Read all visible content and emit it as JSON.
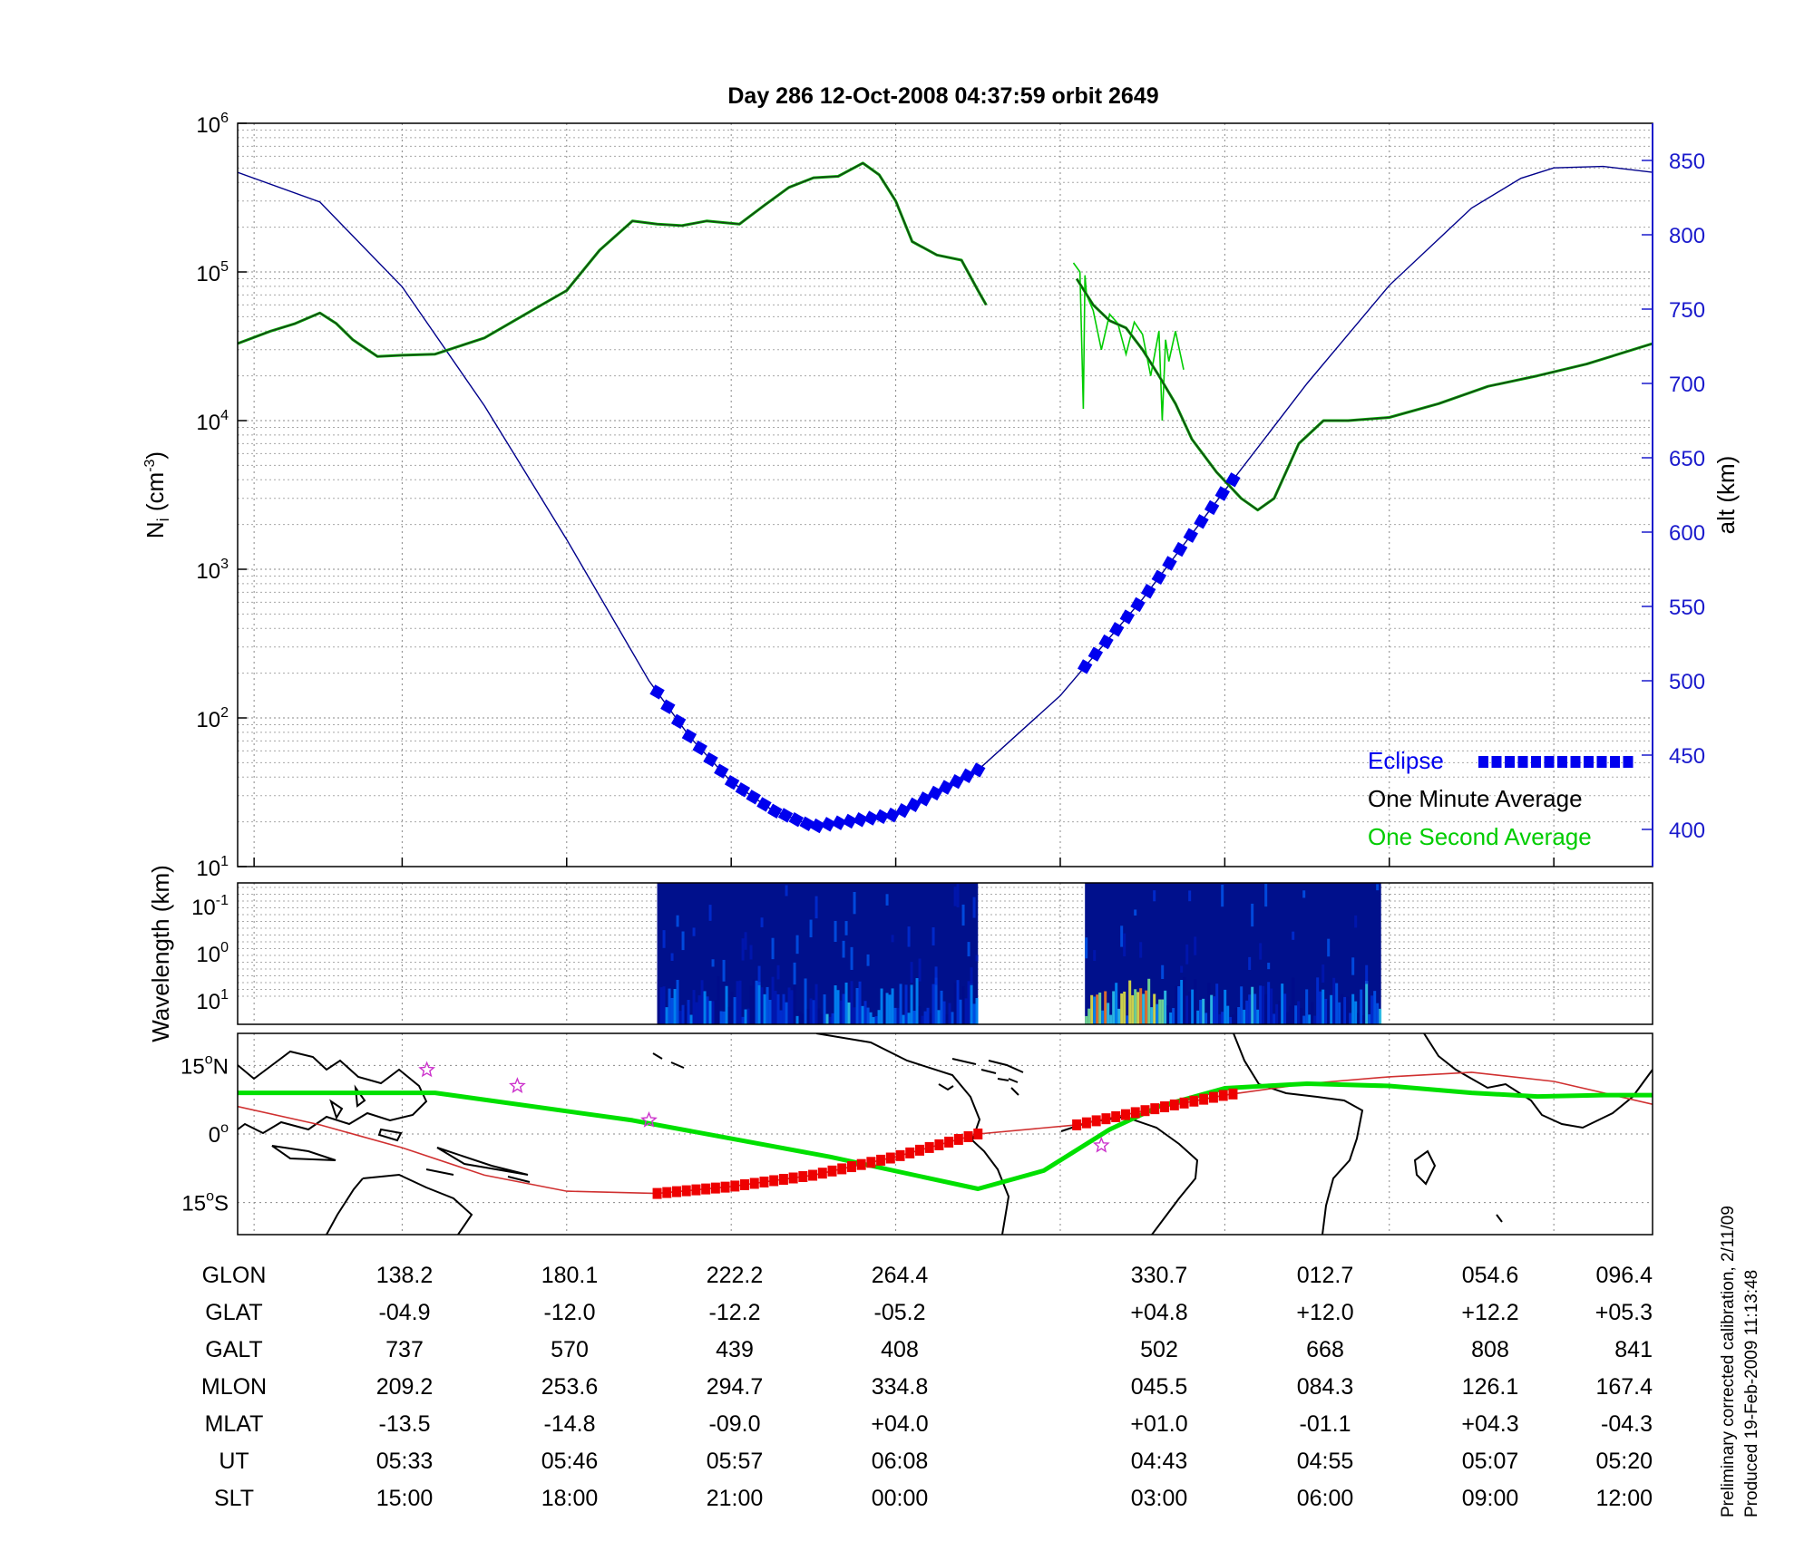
{
  "title": "Day 286  12-Oct-2008 04:37:59   orbit 2649",
  "colors": {
    "altitude": "#00008b",
    "one_minute": "#000000",
    "one_second": "#00cc00",
    "eclipse": "#0000ee",
    "ground_track": "#00e000",
    "magnetic_track": "#d03030",
    "eclipse_map": "#ee0000",
    "star": "#cc33cc",
    "axis_right": "#1a1acc"
  },
  "chart_data": [
    {
      "type": "line",
      "panel": "density",
      "ylabel": "N",
      "ylabel_sub": "i",
      "ylabel_unit": " (cm",
      "ylabel_unit_sup": "-3",
      "ylabel_close": ")",
      "yscale": "log",
      "ylim": [
        10,
        1000000
      ],
      "y_ticks": [
        {
          "base": "10",
          "exp": "1",
          "value": 10
        },
        {
          "base": "10",
          "exp": "2",
          "value": 100
        },
        {
          "base": "10",
          "exp": "3",
          "value": 1000
        },
        {
          "base": "10",
          "exp": "4",
          "value": 10000
        },
        {
          "base": "10",
          "exp": "5",
          "value": 100000
        },
        {
          "base": "10",
          "exp": "6",
          "value": 1000000
        }
      ],
      "xlim": [
        0,
        8.6
      ],
      "y2label": "alt (km)",
      "y2lim": [
        375,
        875
      ],
      "y2_ticks": [
        "400",
        "450",
        "500",
        "550",
        "600",
        "650",
        "700",
        "750",
        "800",
        "850"
      ],
      "legend_position": "bottom-right",
      "legend": {
        "eclipse": "Eclipse",
        "one_minute": "One Minute Average",
        "one_second": "One Second Average"
      },
      "grid": true,
      "series": [
        {
          "name": "One Minute Average",
          "axis": "left",
          "segments": [
            {
              "x": [
                0,
                0.2,
                0.35,
                0.5,
                0.6,
                0.7,
                0.85,
                1.0,
                1.2,
                1.5,
                1.8,
                2.0,
                2.2,
                2.4,
                2.55,
                2.7,
                2.85,
                3.05,
                3.2,
                3.35,
                3.5,
                3.65,
                3.8,
                3.9,
                4.0,
                4.1,
                4.25,
                4.4,
                4.5,
                4.55
              ],
              "y": [
                33000,
                40000,
                45000,
                53000,
                45000,
                35000,
                27000,
                27500,
                28000,
                36000,
                56000,
                75000,
                140000,
                220000,
                210000,
                205000,
                220000,
                210000,
                280000,
                370000,
                430000,
                440000,
                540000,
                450000,
                300000,
                160000,
                130000,
                120000,
                75000,
                60000
              ]
            },
            {
              "x": [
                5.1,
                5.2,
                5.3,
                5.4,
                5.5,
                5.6,
                5.7,
                5.8,
                5.95,
                6.1,
                6.2,
                6.3,
                6.45,
                6.6,
                6.75,
                7.0,
                7.3,
                7.6,
                7.9,
                8.2,
                8.6
              ],
              "y": [
                90000,
                60000,
                47000,
                42000,
                30000,
                20000,
                13000,
                7500,
                4500,
                3000,
                2500,
                3000,
                7000,
                10000,
                10000,
                10500,
                13000,
                17000,
                20000,
                24000,
                33000
              ]
            }
          ]
        },
        {
          "name": "One Second Average",
          "axis": "left",
          "segments": [
            {
              "x": [
                5.08,
                5.12,
                5.14,
                5.15,
                5.16,
                5.2,
                5.25,
                5.3,
                5.35,
                5.4,
                5.45,
                5.5,
                5.55,
                5.6,
                5.62,
                5.64,
                5.66,
                5.7,
                5.75
              ],
              "y": [
                115000,
                100000,
                12000,
                95000,
                70000,
                55000,
                30000,
                52000,
                45000,
                28000,
                46000,
                38000,
                20000,
                40000,
                10000,
                35000,
                25000,
                40000,
                22000
              ]
            }
          ]
        },
        {
          "name": "altitude",
          "axis": "right",
          "segments": [
            {
              "x": [
                0,
                0.5,
                1.0,
                1.5,
                2.0,
                2.5,
                2.75,
                3.0,
                3.25,
                3.5,
                4.0,
                4.5,
                5.0,
                5.5,
                6.0,
                6.5,
                7.0,
                7.5,
                7.8,
                8.0,
                8.3,
                8.6
              ],
              "y": [
                842,
                822,
                765,
                685,
                595,
                500,
                462,
                432,
                413,
                402,
                410,
                440,
                490,
                555,
                628,
                700,
                766,
                818,
                838,
                845,
                846,
                842
              ]
            }
          ]
        },
        {
          "name": "Eclipse",
          "axis": "right",
          "segments": [
            {
              "x_start": 2.55,
              "x_end": 4.5
            },
            {
              "x_start": 5.15,
              "x_end": 6.05
            }
          ]
        }
      ]
    },
    {
      "type": "heatmap",
      "panel": "spectrogram",
      "ylabel": "Wavelength (km)",
      "y_ticks": [
        {
          "base": "10",
          "exp": "-1"
        },
        {
          "base": "10",
          "exp": "0"
        },
        {
          "base": "10",
          "exp": "1"
        }
      ],
      "segments": [
        {
          "x_start": 2.55,
          "x_end": 4.5
        },
        {
          "x_start": 5.15,
          "x_end": 6.95
        }
      ]
    },
    {
      "type": "line",
      "panel": "map",
      "ylim": [
        -22,
        22
      ],
      "y_ticks": [
        {
          "value": 15,
          "text": "15",
          "unit": "N"
        },
        {
          "value": 0,
          "text": "0",
          "unit": ""
        },
        {
          "value": -15,
          "text": "15",
          "unit": "S"
        }
      ],
      "series": [
        {
          "name": "ground_track",
          "x": [
            0,
            1.2,
            2.4,
            3.6,
            4.5,
            4.9,
            5.3,
            5.6,
            6.0,
            6.5,
            7.0,
            7.5,
            7.9,
            8.3,
            8.6
          ],
          "y": [
            9,
            9,
            3,
            -5,
            -12,
            -8,
            1,
            6,
            10,
            11,
            10.5,
            9,
            8.2,
            8.5,
            8.5
          ]
        },
        {
          "name": "magnetic_track",
          "x": [
            0,
            0.5,
            1.0,
            1.5,
            2.0,
            2.55,
            3.0,
            3.5,
            4.0,
            4.5,
            5.1,
            5.5,
            6.0,
            6.5,
            7.0,
            7.5,
            8.0,
            8.6
          ],
          "y": [
            6,
            2,
            -3,
            -9,
            -12.5,
            -13,
            -11.5,
            -9,
            -5,
            0,
            2,
            5,
            8.5,
            11,
            12.5,
            13.5,
            11.5,
            6.5
          ]
        },
        {
          "name": "eclipse_map",
          "segments": [
            {
              "x_start": 2.55,
              "x_end": 4.5
            },
            {
              "x_start": 5.1,
              "x_end": 6.05
            }
          ]
        }
      ],
      "stars": [
        {
          "x": 1.15,
          "y": 14
        },
        {
          "x": 1.7,
          "y": 10.5
        },
        {
          "x": 2.5,
          "y": 3
        },
        {
          "x": 5.25,
          "y": -2.5
        }
      ]
    }
  ],
  "table": {
    "row_labels": [
      "GLON",
      "GLAT",
      "GALT",
      "MLON",
      "MLAT",
      "UT",
      "SLT"
    ],
    "columns": [
      [
        "138.2",
        "-04.9",
        "737",
        "209.2",
        "-13.5",
        "05:33",
        "15:00"
      ],
      [
        "180.1",
        "-12.0",
        "570",
        "253.6",
        "-14.8",
        "05:46",
        "18:00"
      ],
      [
        "222.2",
        "-12.2",
        "439",
        "294.7",
        "-09.0",
        "05:57",
        "21:00"
      ],
      [
        "264.4",
        "-05.2",
        "408",
        "334.8",
        "+04.0",
        "06:08",
        "00:00"
      ],
      [
        "330.7",
        "+04.8",
        "502",
        "045.5",
        "+01.0",
        "04:43",
        "03:00"
      ],
      [
        "012.7",
        "+12.0",
        "668",
        "084.3",
        "-01.1",
        "04:55",
        "06:00"
      ],
      [
        "054.6",
        "+12.2",
        "808",
        "126.1",
        "+04.3",
        "05:07",
        "09:00"
      ],
      [
        "096.4",
        "+05.3",
        "841",
        "167.4",
        "-04.3",
        "05:20",
        "12:00"
      ]
    ]
  },
  "notes": [
    "Preliminary corrected calibration, 2/11/09",
    "Produced 19-Feb-2009 11:13:48"
  ]
}
